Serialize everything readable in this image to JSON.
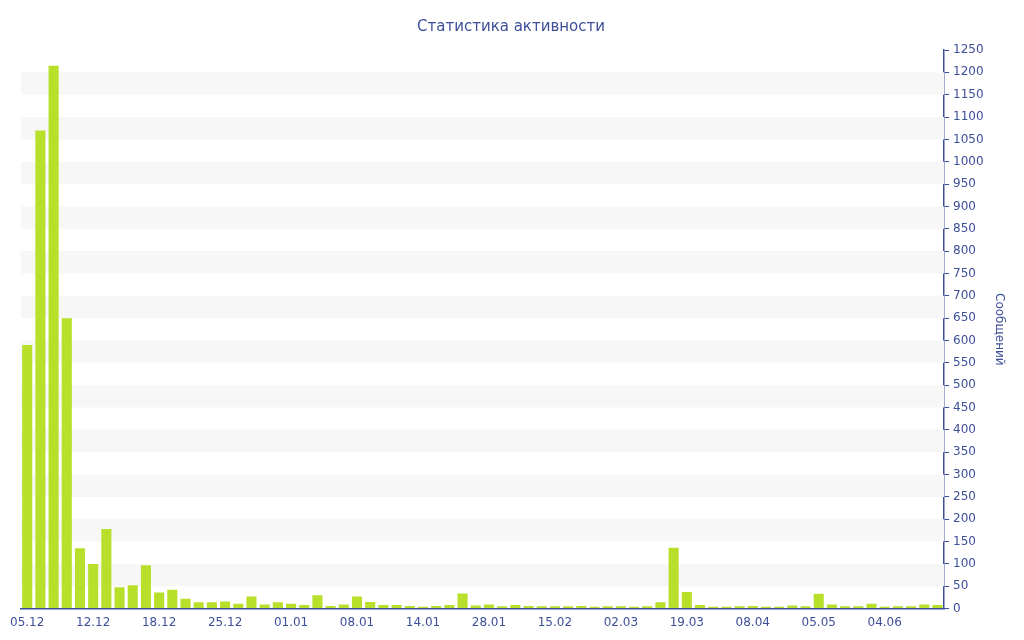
{
  "chart_data": {
    "type": "bar",
    "title": "Статистика активности",
    "ylabel": "Сообщений",
    "categories": [
      "05.12",
      null,
      null,
      null,
      null,
      "12.12",
      null,
      null,
      null,
      null,
      "18.12",
      null,
      null,
      null,
      null,
      "25.12",
      null,
      null,
      null,
      null,
      "01.01",
      null,
      null,
      null,
      null,
      "08.01",
      null,
      null,
      null,
      null,
      "14.01",
      null,
      null,
      null,
      null,
      "28.01",
      null,
      null,
      null,
      null,
      "15.02",
      null,
      null,
      null,
      null,
      "02.03",
      null,
      null,
      null,
      null,
      "19.03",
      null,
      null,
      null,
      null,
      "08.04",
      null,
      null,
      null,
      null,
      "05.05",
      null,
      null,
      null,
      null,
      "04.06",
      null,
      null,
      null,
      null
    ],
    "values": [
      590,
      1070,
      1215,
      650,
      135,
      100,
      178,
      48,
      52,
      97,
      36,
      42,
      22,
      14,
      14,
      16,
      11,
      27,
      9,
      14,
      11,
      8,
      30,
      6,
      9,
      27,
      15,
      8,
      8,
      6,
      4,
      6,
      8,
      34,
      7,
      9,
      5,
      8,
      6,
      5,
      5,
      5,
      6,
      4,
      5,
      5,
      4,
      5,
      14,
      136,
      37,
      8,
      4,
      4,
      5,
      6,
      4,
      4,
      7,
      5,
      33,
      9,
      5,
      5,
      11,
      4,
      5,
      5,
      9,
      8
    ],
    "color": "#b8e02a",
    "ylim": [
      0,
      1250
    ],
    "yticks": [
      0,
      50,
      100,
      150,
      200,
      250,
      300,
      350,
      400,
      450,
      500,
      550,
      600,
      650,
      700,
      750,
      800,
      850,
      900,
      950,
      1000,
      1050,
      1100,
      1150,
      1200,
      1250
    ],
    "bands": [
      {
        "axis": "y",
        "from": 50,
        "to": 100,
        "color": "#f7f7f7"
      },
      {
        "axis": "y",
        "from": 150,
        "to": 200,
        "color": "#f7f7f7"
      },
      {
        "axis": "y",
        "from": 250,
        "to": 300,
        "color": "#f7f7f7"
      },
      {
        "axis": "y",
        "from": 350,
        "to": 400,
        "color": "#f7f7f7"
      },
      {
        "axis": "y",
        "from": 450,
        "to": 500,
        "color": "#f7f7f7"
      },
      {
        "axis": "y",
        "from": 550,
        "to": 600,
        "color": "#f7f7f7"
      },
      {
        "axis": "y",
        "from": 650,
        "to": 700,
        "color": "#f7f7f7"
      },
      {
        "axis": "y",
        "from": 750,
        "to": 800,
        "color": "#f7f7f7"
      },
      {
        "axis": "y",
        "from": 850,
        "to": 900,
        "color": "#f7f7f7"
      },
      {
        "axis": "y",
        "from": 950,
        "to": 1000,
        "color": "#f7f7f7"
      },
      {
        "axis": "y",
        "from": 1050,
        "to": 1100,
        "color": "#f7f7f7"
      },
      {
        "axis": "y",
        "from": 1150,
        "to": 1200,
        "color": "#f7f7f7"
      }
    ],
    "legend": false
  }
}
